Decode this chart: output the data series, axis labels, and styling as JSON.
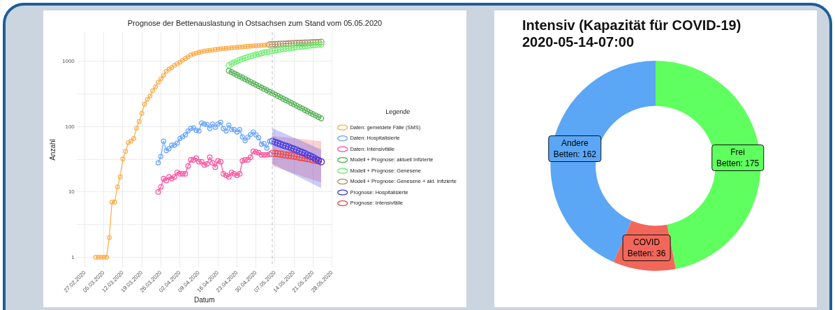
{
  "chart_data": [
    {
      "type": "line",
      "title": "Prognose der Bettenauslastung in Ostsachsen zum Stand vom 05.05.2020",
      "xlabel": "Datum",
      "ylabel": "Anzahl",
      "legend_title": "Legende",
      "legend": "right",
      "grid": true,
      "log": "y",
      "marker": "circle",
      "line_style": "solid",
      "xlim": [
        "2020-02-24",
        "2020-05-28"
      ],
      "xticks": [
        {
          "value": "2020-02-27",
          "label": "27.02.2020"
        },
        {
          "value": "2020-03-05",
          "label": "05.03.2020"
        },
        {
          "value": "2020-03-12",
          "label": "12.03.2020"
        },
        {
          "value": "2020-03-19",
          "label": "19.03.2020"
        },
        {
          "value": "2020-03-26",
          "label": "26.03.2020"
        },
        {
          "value": "2020-04-02",
          "label": "02.04.2020"
        },
        {
          "value": "2020-04-09",
          "label": "09.04.2020"
        },
        {
          "value": "2020-04-16",
          "label": "16.04.2020"
        },
        {
          "value": "2020-04-23",
          "label": "23.04.2020"
        },
        {
          "value": "2020-04-30",
          "label": "30.04.2020"
        },
        {
          "value": "2020-05-07",
          "label": "07.05.2020"
        },
        {
          "value": "2020-05-14",
          "label": "14.05.2020"
        },
        {
          "value": "2020-05-21",
          "label": "21.05.2020"
        },
        {
          "value": "2020-05-28",
          "label": "28.05.2020"
        }
      ],
      "ylim": [
        0.7,
        2800
      ],
      "yticks": [
        1,
        {
          "value": 3.162,
          "label": null
        },
        10,
        {
          "value": 31.62,
          "label": null
        },
        100,
        {
          "value": 316.2,
          "label": null
        },
        1000
      ],
      "ref_lines": [
        {
          "axis": "x",
          "value": "2020-05-06",
          "color": "#bbbbbb",
          "line_style": "dashed"
        }
      ],
      "series": [
        {
          "name": "Daten: gemeldete Fälle (SMS)",
          "color": "#ffaa44",
          "x": [
            "2020-03-02",
            "2020-03-03",
            "2020-03-04",
            "2020-03-05",
            "2020-03-06",
            "2020-03-07",
            "2020-03-08",
            "2020-03-09",
            "2020-03-10",
            "2020-03-11",
            "2020-03-12",
            "2020-03-13",
            "2020-03-14",
            "2020-03-15",
            "2020-03-16",
            "2020-03-17",
            "2020-03-18",
            "2020-03-19",
            "2020-03-20",
            "2020-03-21",
            "2020-03-22",
            "2020-03-23",
            "2020-03-24",
            "2020-03-25",
            "2020-03-26",
            "2020-03-27",
            "2020-03-28",
            "2020-03-29",
            "2020-03-30",
            "2020-03-31",
            "2020-04-01",
            "2020-04-02",
            "2020-04-03",
            "2020-04-04",
            "2020-04-05",
            "2020-04-06",
            "2020-04-07",
            "2020-04-08",
            "2020-04-09",
            "2020-04-10",
            "2020-04-11",
            "2020-04-12",
            "2020-04-13",
            "2020-04-14",
            "2020-04-15",
            "2020-04-16",
            "2020-04-17",
            "2020-04-18",
            "2020-04-19",
            "2020-04-20",
            "2020-04-21",
            "2020-04-22",
            "2020-04-23",
            "2020-04-24",
            "2020-04-25",
            "2020-04-26",
            "2020-04-27",
            "2020-04-28",
            "2020-04-29",
            "2020-04-30",
            "2020-05-01",
            "2020-05-02",
            "2020-05-03",
            "2020-05-04"
          ],
          "values": [
            1,
            1,
            1,
            1,
            1,
            2,
            7,
            7,
            12,
            17,
            32,
            42,
            57,
            60,
            66,
            95,
            120,
            160,
            222,
            262,
            295,
            356,
            408,
            481,
            543,
            614,
            705,
            765,
            803,
            871,
            922,
            976,
            1041,
            1111,
            1177,
            1250,
            1300,
            1340,
            1380,
            1410,
            1440,
            1460,
            1480,
            1500,
            1520,
            1540,
            1560,
            1575,
            1590,
            1605,
            1620,
            1635,
            1650,
            1660,
            1675,
            1690,
            1700,
            1715,
            1730,
            1740,
            1755,
            1765,
            1775,
            1790
          ]
        },
        {
          "name": "Daten: Hospitalisierte",
          "color": "#66a3ff",
          "x": [
            "2020-03-25",
            "2020-03-26",
            "2020-03-27",
            "2020-03-28",
            "2020-03-29",
            "2020-03-30",
            "2020-03-31",
            "2020-04-01",
            "2020-04-02",
            "2020-04-03",
            "2020-04-04",
            "2020-04-05",
            "2020-04-06",
            "2020-04-07",
            "2020-04-08",
            "2020-04-09",
            "2020-04-10",
            "2020-04-11",
            "2020-04-12",
            "2020-04-13",
            "2020-04-14",
            "2020-04-15",
            "2020-04-16",
            "2020-04-17",
            "2020-04-18",
            "2020-04-19",
            "2020-04-20",
            "2020-04-21",
            "2020-04-22",
            "2020-04-23",
            "2020-04-24",
            "2020-04-25",
            "2020-04-26",
            "2020-04-27",
            "2020-04-28",
            "2020-04-29",
            "2020-04-30",
            "2020-05-01",
            "2020-05-02",
            "2020-05-03",
            "2020-05-04",
            "2020-05-05"
          ],
          "values": [
            28,
            35,
            60,
            43,
            46,
            52,
            52,
            56,
            66,
            70,
            75,
            86,
            94,
            96,
            88,
            86,
            114,
            110,
            108,
            94,
            110,
            98,
            110,
            117,
            94,
            86,
            106,
            91,
            90,
            83,
            90,
            70,
            61,
            69,
            76,
            83,
            75,
            68,
            54,
            55,
            47,
            60
          ]
        },
        {
          "name": "Daten: Intensivfälle",
          "color": "#ff4d9e",
          "x": [
            "2020-03-25",
            "2020-03-26",
            "2020-03-27",
            "2020-03-28",
            "2020-03-29",
            "2020-03-30",
            "2020-03-31",
            "2020-04-01",
            "2020-04-02",
            "2020-04-03",
            "2020-04-04",
            "2020-04-05",
            "2020-04-06",
            "2020-04-07",
            "2020-04-08",
            "2020-04-09",
            "2020-04-10",
            "2020-04-11",
            "2020-04-12",
            "2020-04-13",
            "2020-04-14",
            "2020-04-15",
            "2020-04-16",
            "2020-04-17",
            "2020-04-18",
            "2020-04-19",
            "2020-04-20",
            "2020-04-21",
            "2020-04-22",
            "2020-04-23",
            "2020-04-24",
            "2020-04-25",
            "2020-04-26",
            "2020-04-27",
            "2020-04-28",
            "2020-04-29",
            "2020-04-30",
            "2020-05-01",
            "2020-05-02",
            "2020-05-03",
            "2020-05-04",
            "2020-05-05"
          ],
          "values": [
            10,
            12,
            16,
            15,
            17,
            16,
            17,
            20,
            19,
            19,
            19,
            25,
            31,
            31,
            33,
            29,
            29,
            26,
            27,
            34,
            28,
            24,
            30,
            29,
            19,
            18,
            17,
            20,
            19,
            18,
            19,
            30,
            31,
            31,
            34,
            42,
            41,
            40,
            37,
            37,
            37,
            38
          ]
        },
        {
          "name": "Modell + Prognose: aktuell Infizierte",
          "color": "#44aa44",
          "x": [
            "2020-04-20",
            "2020-04-21",
            "2020-04-22",
            "2020-04-23",
            "2020-04-24",
            "2020-04-25",
            "2020-04-26",
            "2020-04-27",
            "2020-04-28",
            "2020-04-29",
            "2020-04-30",
            "2020-05-01",
            "2020-05-02",
            "2020-05-03",
            "2020-05-04",
            "2020-05-05",
            "2020-05-06",
            "2020-05-07",
            "2020-05-08",
            "2020-05-09",
            "2020-05-10",
            "2020-05-11",
            "2020-05-12",
            "2020-05-13",
            "2020-05-14",
            "2020-05-15",
            "2020-05-16",
            "2020-05-17",
            "2020-05-18",
            "2020-05-19",
            "2020-05-20",
            "2020-05-21",
            "2020-05-22",
            "2020-05-23",
            "2020-05-24"
          ],
          "values": [
            722,
            687,
            654,
            622,
            592,
            564,
            536,
            510,
            486,
            462,
            440,
            419,
            398,
            379,
            361,
            343,
            327,
            311,
            296,
            282,
            268,
            255,
            243,
            231,
            220,
            209,
            199,
            190,
            180,
            172,
            163,
            155,
            148,
            141,
            134
          ]
        },
        {
          "name": "Modell + Prognose: Genesene",
          "color": "#66ee66",
          "x": [
            "2020-04-20",
            "2020-04-21",
            "2020-04-22",
            "2020-04-23",
            "2020-04-24",
            "2020-04-25",
            "2020-04-26",
            "2020-04-27",
            "2020-04-28",
            "2020-04-29",
            "2020-04-30",
            "2020-05-01",
            "2020-05-02",
            "2020-05-03",
            "2020-05-04",
            "2020-05-05",
            "2020-05-06",
            "2020-05-07",
            "2020-05-08",
            "2020-05-09",
            "2020-05-10",
            "2020-05-11",
            "2020-05-12",
            "2020-05-13",
            "2020-05-14",
            "2020-05-15",
            "2020-05-16",
            "2020-05-17",
            "2020-05-18",
            "2020-05-19",
            "2020-05-20",
            "2020-05-21",
            "2020-05-22",
            "2020-05-23",
            "2020-05-24"
          ],
          "values": [
            870,
            920,
            967,
            1011,
            1053,
            1093,
            1131,
            1167,
            1202,
            1236,
            1269,
            1301,
            1332,
            1362,
            1391,
            1419,
            1446,
            1472,
            1497,
            1521,
            1545,
            1568,
            1591,
            1613,
            1635,
            1656,
            1677,
            1697,
            1717,
            1736,
            1755,
            1773,
            1791,
            1808,
            1825
          ]
        },
        {
          "name": "Modell + Prognose: Genesene + akt. Infizierte",
          "color": "#a8865f",
          "x": [
            "2020-05-05",
            "2020-05-06",
            "2020-05-07",
            "2020-05-08",
            "2020-05-09",
            "2020-05-10",
            "2020-05-11",
            "2020-05-12",
            "2020-05-13",
            "2020-05-14",
            "2020-05-15",
            "2020-05-16",
            "2020-05-17",
            "2020-05-18",
            "2020-05-19",
            "2020-05-20",
            "2020-05-21",
            "2020-05-22",
            "2020-05-23",
            "2020-05-24"
          ],
          "values": [
            1810,
            1820,
            1830,
            1840,
            1850,
            1860,
            1870,
            1880,
            1890,
            1900,
            1908,
            1916,
            1924,
            1932,
            1940,
            1948,
            1956,
            1964,
            1972,
            1980
          ]
        },
        {
          "name": "Prognose: Hospitalisierte",
          "color": "#3333ee",
          "x": [
            "2020-05-06",
            "2020-05-07",
            "2020-05-08",
            "2020-05-09",
            "2020-05-10",
            "2020-05-11",
            "2020-05-12",
            "2020-05-13",
            "2020-05-14",
            "2020-05-15",
            "2020-05-16",
            "2020-05-17",
            "2020-05-18",
            "2020-05-19",
            "2020-05-20",
            "2020-05-21",
            "2020-05-22",
            "2020-05-23",
            "2020-05-24"
          ],
          "values": [
            60,
            58,
            56,
            54,
            52,
            50.5,
            49,
            47,
            45.5,
            44,
            42,
            40.5,
            39,
            37,
            35.5,
            34,
            32,
            30.5,
            29
          ],
          "lower": [
            27,
            25.7,
            24.5,
            23.4,
            22.3,
            21.3,
            20.3,
            19.4,
            18.5,
            17.6,
            16.8,
            16,
            15.3,
            14.6,
            13.9,
            13.2,
            12.6,
            12,
            11.5
          ],
          "upper": [
            95,
            91,
            87.5,
            84,
            80.5,
            77,
            74,
            71,
            68,
            65,
            62.5,
            60,
            57.5,
            55,
            53,
            50.5,
            48.5,
            46.5,
            45
          ]
        },
        {
          "name": "Prognose: Intensivfälle",
          "color": "#ee4444",
          "x": [
            "2020-05-06",
            "2020-05-07",
            "2020-05-08",
            "2020-05-09",
            "2020-05-10",
            "2020-05-11",
            "2020-05-12",
            "2020-05-13",
            "2020-05-14",
            "2020-05-15",
            "2020-05-16",
            "2020-05-17",
            "2020-05-18",
            "2020-05-19",
            "2020-05-20",
            "2020-05-21",
            "2020-05-22",
            "2020-05-23",
            "2020-05-24"
          ],
          "values": [
            39,
            39,
            38.5,
            38,
            37.5,
            37,
            36.5,
            36,
            35.5,
            35,
            34,
            33.5,
            33,
            32.5,
            32,
            31,
            30.5,
            30,
            29
          ],
          "lower": [
            25,
            24.2,
            23.4,
            22.6,
            21.9,
            21.2,
            20.5,
            19.8,
            19.2,
            18.6,
            18,
            17.4,
            16.8,
            16.3,
            15.8,
            15.3,
            14.8,
            14.4,
            14
          ],
          "upper": [
            72,
            71.3,
            70.6,
            69.9,
            69.2,
            68.5,
            67.8,
            67.1,
            66.4,
            65.7,
            65,
            64.3,
            63.6,
            62.9,
            62.3,
            61.7,
            61.1,
            60.5,
            60
          ]
        }
      ]
    },
    {
      "type": "donut",
      "title": "Intensiv (Kapazität für COVID-19)",
      "subtitle": "2020-05-14-07:00",
      "legend": false,
      "categories": [
        "Frei",
        "COVID",
        "Andere"
      ],
      "values": [
        175,
        36,
        162
      ],
      "colors": [
        "#5fff5f",
        "#f3675a",
        "#5ba6f5"
      ],
      "value_labels": [
        "Betten: 175",
        "Betten: 36",
        "Betten: 162"
      ]
    }
  ]
}
